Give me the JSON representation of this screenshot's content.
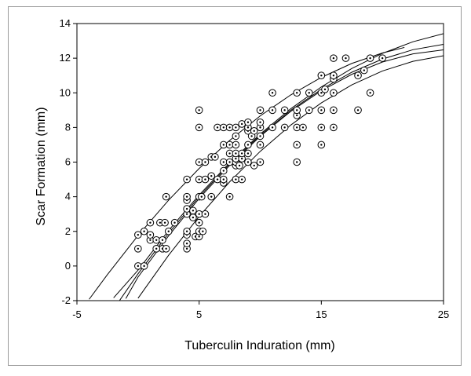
{
  "chart_data": {
    "type": "scatter",
    "title": "",
    "xlabel": "Tuberculin Induration (mm)",
    "ylabel": "Scar Formation (mm)",
    "xlim": [
      -5,
      25
    ],
    "ylim": [
      -2,
      14
    ],
    "xticks": [
      -5,
      5,
      15,
      25
    ],
    "yticks": [
      -2,
      0,
      2,
      4,
      6,
      8,
      10,
      12,
      14
    ],
    "grid": false,
    "marker": "circled-dot",
    "points": [
      [
        0,
        0
      ],
      [
        0.5,
        0
      ],
      [
        0,
        1
      ],
      [
        0,
        1.8
      ],
      [
        0.5,
        2
      ],
      [
        1,
        1.5
      ],
      [
        1,
        1.8
      ],
      [
        1,
        2.5
      ],
      [
        1.5,
        1.5
      ],
      [
        1.8,
        2.5
      ],
      [
        2,
        1.5
      ],
      [
        2,
        1
      ],
      [
        2.2,
        2.5
      ],
      [
        2.3,
        4
      ],
      [
        2.5,
        2
      ],
      [
        3,
        2.5
      ],
      [
        1.5,
        1
      ],
      [
        2.3,
        1
      ],
      [
        4,
        1
      ],
      [
        4,
        1.3
      ],
      [
        4,
        1.8
      ],
      [
        4,
        2
      ],
      [
        4,
        3
      ],
      [
        4,
        3.3
      ],
      [
        4,
        3.8
      ],
      [
        4,
        4
      ],
      [
        4,
        5
      ],
      [
        4.5,
        2.8
      ],
      [
        4.5,
        3.2
      ],
      [
        4.7,
        1.7
      ],
      [
        5,
        1.7
      ],
      [
        5,
        2
      ],
      [
        5,
        2.5
      ],
      [
        5,
        3
      ],
      [
        5,
        4
      ],
      [
        5,
        5
      ],
      [
        5,
        6
      ],
      [
        5,
        8
      ],
      [
        5,
        9
      ],
      [
        5.3,
        2
      ],
      [
        5.5,
        3
      ],
      [
        5.5,
        5
      ],
      [
        5.5,
        6
      ],
      [
        5.2,
        4
      ],
      [
        6,
        4
      ],
      [
        6,
        5.2
      ],
      [
        6,
        6.3
      ],
      [
        6.3,
        6.3
      ],
      [
        6.5,
        5
      ],
      [
        6.5,
        8
      ],
      [
        7,
        4.8
      ],
      [
        7,
        5
      ],
      [
        7,
        5.5
      ],
      [
        7,
        6
      ],
      [
        7,
        7
      ],
      [
        7,
        8
      ],
      [
        7.5,
        4
      ],
      [
        7.5,
        6
      ],
      [
        7.5,
        6.5
      ],
      [
        7.5,
        7
      ],
      [
        7.5,
        8
      ],
      [
        8,
        5
      ],
      [
        8,
        5.8
      ],
      [
        8,
        6
      ],
      [
        8,
        6.2
      ],
      [
        8,
        6.5
      ],
      [
        8,
        7
      ],
      [
        8,
        7.5
      ],
      [
        8,
        8
      ],
      [
        8.3,
        5.8
      ],
      [
        8.5,
        5
      ],
      [
        8.5,
        6.2
      ],
      [
        8.5,
        6.5
      ],
      [
        8.5,
        8.2
      ],
      [
        9,
        6
      ],
      [
        9,
        6.5
      ],
      [
        9,
        7
      ],
      [
        9,
        7.8
      ],
      [
        9,
        8
      ],
      [
        9,
        8.3
      ],
      [
        9.3,
        7.5
      ],
      [
        9.5,
        5.8
      ],
      [
        9.5,
        7.8
      ],
      [
        10,
        6
      ],
      [
        10,
        7
      ],
      [
        10,
        7.5
      ],
      [
        10,
        8
      ],
      [
        10,
        8.3
      ],
      [
        10,
        9
      ],
      [
        11,
        8
      ],
      [
        11,
        9
      ],
      [
        11,
        10
      ],
      [
        12,
        8
      ],
      [
        12,
        9
      ],
      [
        13,
        6
      ],
      [
        13,
        7
      ],
      [
        13,
        8
      ],
      [
        13,
        8.7
      ],
      [
        13,
        9
      ],
      [
        13,
        10
      ],
      [
        13.5,
        8
      ],
      [
        14,
        9
      ],
      [
        14,
        10
      ],
      [
        15,
        7
      ],
      [
        15,
        8
      ],
      [
        15,
        9
      ],
      [
        15,
        10
      ],
      [
        15,
        11
      ],
      [
        15.3,
        10.2
      ],
      [
        16,
        8
      ],
      [
        16,
        9
      ],
      [
        16,
        10
      ],
      [
        16,
        10.8
      ],
      [
        16,
        11
      ],
      [
        16,
        12
      ],
      [
        17,
        12
      ],
      [
        18,
        9
      ],
      [
        18,
        11
      ],
      [
        18.5,
        11.3
      ],
      [
        19,
        10
      ],
      [
        19,
        12
      ],
      [
        20,
        12
      ]
    ],
    "curves": [
      {
        "description": "fitted quadratic",
        "x": [
          -1.5,
          0,
          2.5,
          5,
          7.5,
          10,
          12.5,
          15,
          17.5,
          20,
          22.5,
          25
        ],
        "y": [
          -1.98,
          -0.45,
          1.89,
          4.0,
          5.89,
          7.55,
          8.99,
          10.2,
          11.19,
          11.95,
          12.49,
          12.8
        ]
      },
      {
        "description": "upper confidence bound",
        "x": [
          -2,
          0,
          2.5,
          5,
          7.5,
          10,
          12.5,
          15,
          17.5,
          20,
          22.5,
          25
        ],
        "y": [
          -1.84,
          -0.24,
          2.05,
          4.1,
          5.96,
          7.62,
          9.08,
          10.34,
          11.41,
          12.28,
          12.95,
          13.42
        ]
      },
      {
        "description": "lower confidence bound",
        "x": [
          -1,
          0,
          2.5,
          5,
          7.5,
          10,
          12.5,
          15,
          17.5,
          20,
          22.5,
          25
        ],
        "y": [
          -1.88,
          -0.64,
          1.74,
          3.9,
          5.81,
          7.49,
          8.93,
          10.12,
          11.07,
          11.78,
          12.25,
          12.48
        ]
      },
      {
        "description": "upper prediction bound",
        "x": [
          -4,
          -2.5,
          0,
          2.5,
          5,
          7.5,
          10,
          12.5,
          15,
          17.5,
          20,
          21.8
        ],
        "y": [
          -1.92,
          -0.49,
          1.76,
          3.8,
          5.63,
          7.25,
          8.67,
          9.88,
          10.89,
          11.7,
          12.3,
          12.62
        ]
      },
      {
        "description": "lower prediction bound",
        "x": [
          0,
          2.5,
          5,
          7.5,
          10,
          12.5,
          15,
          17.5,
          20,
          22.5,
          25
        ],
        "y": [
          -1.86,
          0.62,
          2.86,
          4.86,
          6.62,
          8.14,
          9.42,
          10.46,
          11.26,
          11.82,
          12.14
        ]
      }
    ]
  }
}
